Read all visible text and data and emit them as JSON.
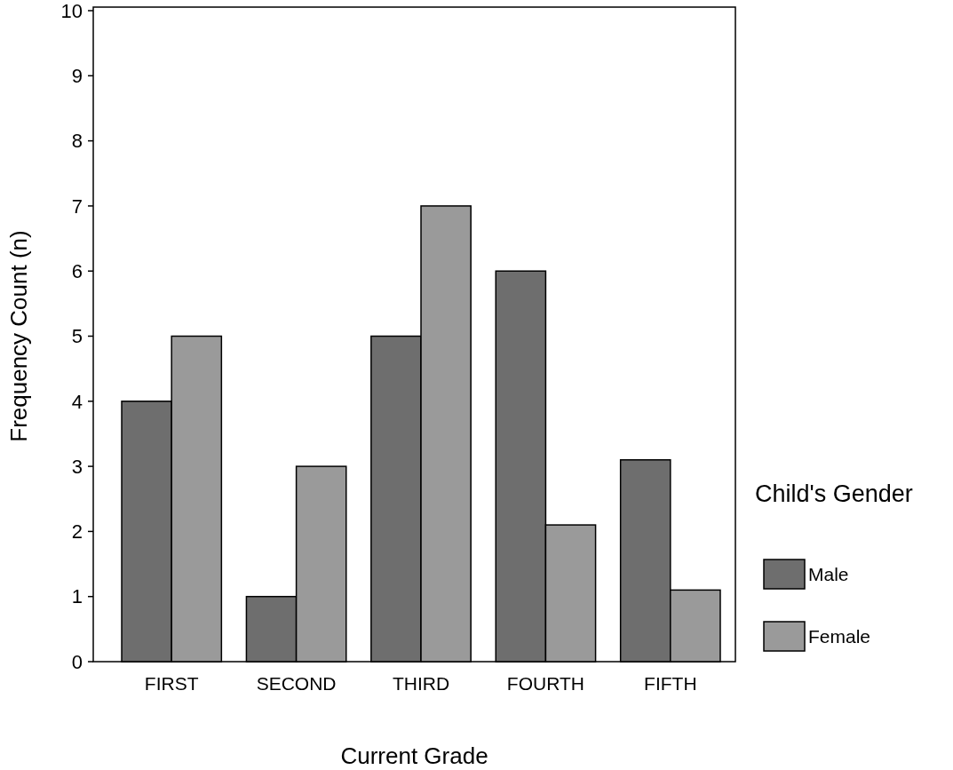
{
  "chart_data": {
    "type": "bar",
    "xlabel": "Current Grade",
    "ylabel": "Frequency Count (n)",
    "legend_title": "Child's Gender",
    "legend": "right",
    "categories": [
      "FIRST",
      "SECOND",
      "THIRD",
      "FOURTH",
      "FIFTH"
    ],
    "series": [
      {
        "name": "Male",
        "color": "#6e6e6e",
        "values": [
          4,
          1,
          5,
          6,
          3.1
        ]
      },
      {
        "name": "Female",
        "color": "#9a9a9a",
        "values": [
          5,
          3,
          7,
          2.1,
          1.1
        ]
      }
    ],
    "ylim": [
      0,
      10
    ],
    "yticks": [
      0,
      1,
      2,
      3,
      4,
      5,
      6,
      7,
      8,
      9,
      10
    ],
    "grid": false
  }
}
